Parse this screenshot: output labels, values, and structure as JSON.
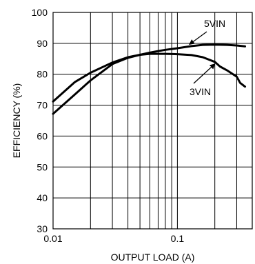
{
  "chart_data": {
    "type": "line",
    "title": "",
    "xlabel": "OUTPUT LOAD (A)",
    "ylabel": "EFFICIENCY (%)",
    "x_scale": "log",
    "xlim": [
      0.01,
      0.4
    ],
    "ylim": [
      30,
      100
    ],
    "x_tick_labels": [
      {
        "value": 0.01,
        "label": "0.01"
      },
      {
        "value": 0.1,
        "label": "0.1"
      }
    ],
    "y_ticks": [
      30,
      40,
      50,
      60,
      70,
      80,
      90,
      100
    ],
    "grid": true,
    "series": [
      {
        "name": "5VIN",
        "x": [
          0.01,
          0.015,
          0.02,
          0.03,
          0.04,
          0.05,
          0.06,
          0.07,
          0.08,
          0.1,
          0.13,
          0.16,
          0.2,
          0.25,
          0.3,
          0.35
        ],
        "y": [
          67.2,
          73.5,
          78.0,
          83.3,
          85.3,
          86.3,
          87.0,
          87.5,
          87.9,
          88.4,
          89.1,
          89.5,
          89.6,
          89.5,
          89.3,
          89.0
        ]
      },
      {
        "name": "3VIN",
        "x": [
          0.01,
          0.015,
          0.02,
          0.03,
          0.04,
          0.05,
          0.06,
          0.07,
          0.08,
          0.1,
          0.13,
          0.16,
          0.2,
          0.22,
          0.25,
          0.3,
          0.32,
          0.35
        ],
        "y": [
          71.2,
          77.5,
          80.5,
          83.8,
          85.5,
          86.3,
          86.6,
          86.6,
          86.6,
          86.5,
          86.2,
          85.5,
          84.0,
          82.5,
          81.3,
          79.2,
          77.2,
          76.0
        ]
      }
    ],
    "annotations": [
      {
        "text": "5VIN",
        "series": "5VIN"
      },
      {
        "text": "3VIN",
        "series": "3VIN"
      }
    ]
  }
}
